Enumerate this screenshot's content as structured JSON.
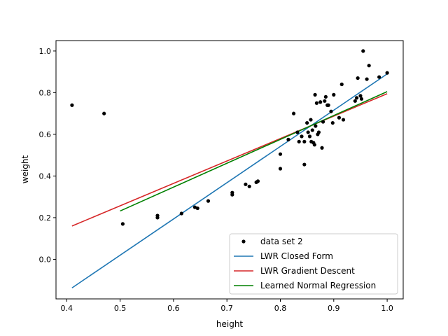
{
  "chart_data": {
    "type": "scatter",
    "title": "",
    "xlabel": "height",
    "ylabel": "weight",
    "xlim": [
      0.38,
      1.03
    ],
    "ylim": [
      -0.19,
      1.05
    ],
    "grid": false,
    "legend_position": "lower-right",
    "x_ticks": [
      0.4,
      0.5,
      0.6,
      0.7,
      0.8,
      0.9,
      1.0
    ],
    "x_tick_labels": [
      "0.4",
      "0.5",
      "0.6",
      "0.7",
      "0.8",
      "0.9",
      "1.0"
    ],
    "y_ticks": [
      0.0,
      0.2,
      0.4,
      0.6,
      0.8,
      1.0
    ],
    "y_tick_labels": [
      "0.0",
      "0.2",
      "0.4",
      "0.6",
      "0.8",
      "1.0"
    ],
    "scatter_series": {
      "name": "data set 2",
      "color": "#000000",
      "points": [
        [
          0.41,
          0.74
        ],
        [
          0.47,
          0.7
        ],
        [
          0.505,
          0.17
        ],
        [
          0.57,
          0.21
        ],
        [
          0.57,
          0.2
        ],
        [
          0.615,
          0.22
        ],
        [
          0.64,
          0.25
        ],
        [
          0.645,
          0.245
        ],
        [
          0.665,
          0.28
        ],
        [
          0.71,
          0.31
        ],
        [
          0.71,
          0.32
        ],
        [
          0.735,
          0.36
        ],
        [
          0.742,
          0.35
        ],
        [
          0.755,
          0.37
        ],
        [
          0.758,
          0.375
        ],
        [
          0.8,
          0.505
        ],
        [
          0.8,
          0.435
        ],
        [
          0.815,
          0.575
        ],
        [
          0.825,
          0.7
        ],
        [
          0.832,
          0.61
        ],
        [
          0.835,
          0.565
        ],
        [
          0.84,
          0.59
        ],
        [
          0.845,
          0.455
        ],
        [
          0.845,
          0.565
        ],
        [
          0.85,
          0.655
        ],
        [
          0.852,
          0.61
        ],
        [
          0.855,
          0.59
        ],
        [
          0.857,
          0.67
        ],
        [
          0.858,
          0.565
        ],
        [
          0.86,
          0.62
        ],
        [
          0.862,
          0.56
        ],
        [
          0.864,
          0.55
        ],
        [
          0.865,
          0.79
        ],
        [
          0.866,
          0.64
        ],
        [
          0.868,
          0.75
        ],
        [
          0.87,
          0.6
        ],
        [
          0.872,
          0.61
        ],
        [
          0.875,
          0.755
        ],
        [
          0.878,
          0.535
        ],
        [
          0.88,
          0.66
        ],
        [
          0.883,
          0.76
        ],
        [
          0.885,
          0.78
        ],
        [
          0.888,
          0.74
        ],
        [
          0.89,
          0.74
        ],
        [
          0.895,
          0.71
        ],
        [
          0.898,
          0.655
        ],
        [
          0.9,
          0.79
        ],
        [
          0.91,
          0.68
        ],
        [
          0.915,
          0.84
        ],
        [
          0.918,
          0.67
        ],
        [
          0.94,
          0.76
        ],
        [
          0.943,
          0.775
        ],
        [
          0.945,
          0.87
        ],
        [
          0.95,
          0.785
        ],
        [
          0.952,
          0.77
        ],
        [
          0.955,
          1.0
        ],
        [
          0.962,
          0.865
        ],
        [
          0.966,
          0.93
        ],
        [
          0.985,
          0.875
        ],
        [
          1.0,
          0.895
        ]
      ]
    },
    "series": [
      {
        "name": "LWR Closed Form",
        "color": "#1f77b4",
        "x": [
          0.41,
          1.0
        ],
        "y": [
          -0.137,
          0.89
        ]
      },
      {
        "name": "LWR Gradient Descent",
        "color": "#d62728",
        "x": [
          0.41,
          1.0
        ],
        "y": [
          0.16,
          0.795
        ]
      },
      {
        "name": "Learned Normal Regression",
        "color": "#008000",
        "x": [
          0.5,
          1.0
        ],
        "y": [
          0.232,
          0.805
        ]
      }
    ]
  }
}
